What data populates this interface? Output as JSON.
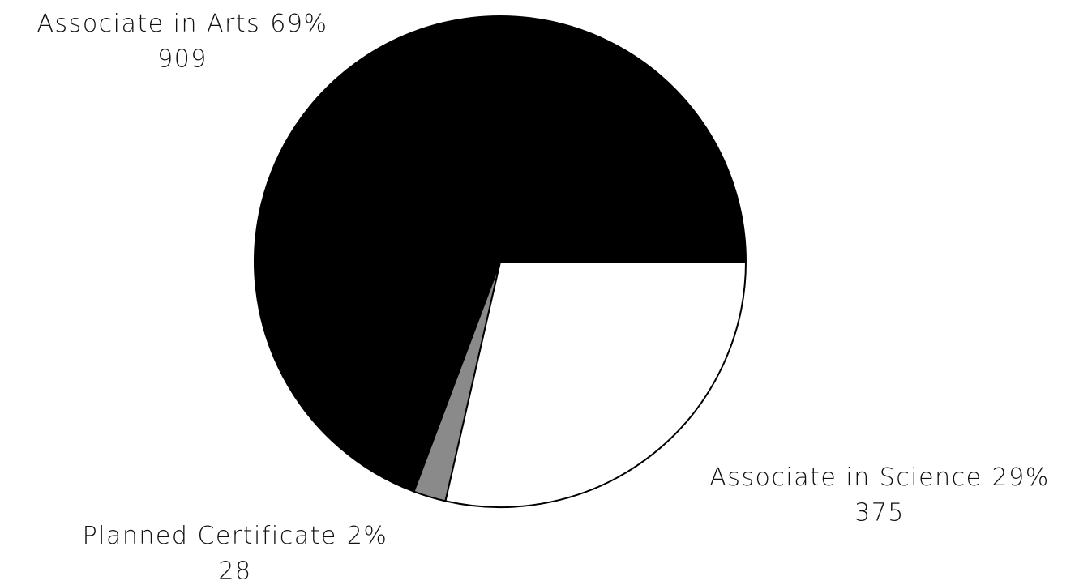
{
  "chart_data": {
    "type": "pie",
    "categories": [
      "Associate in Science",
      "Planned Certificate",
      "Associate in Arts"
    ],
    "values": [
      375,
      28,
      909
    ],
    "percent_labels": [
      "29%",
      "2%",
      "69%"
    ],
    "colors": [
      "#ffffff",
      "#8a8a8a",
      "#000000"
    ]
  }
}
